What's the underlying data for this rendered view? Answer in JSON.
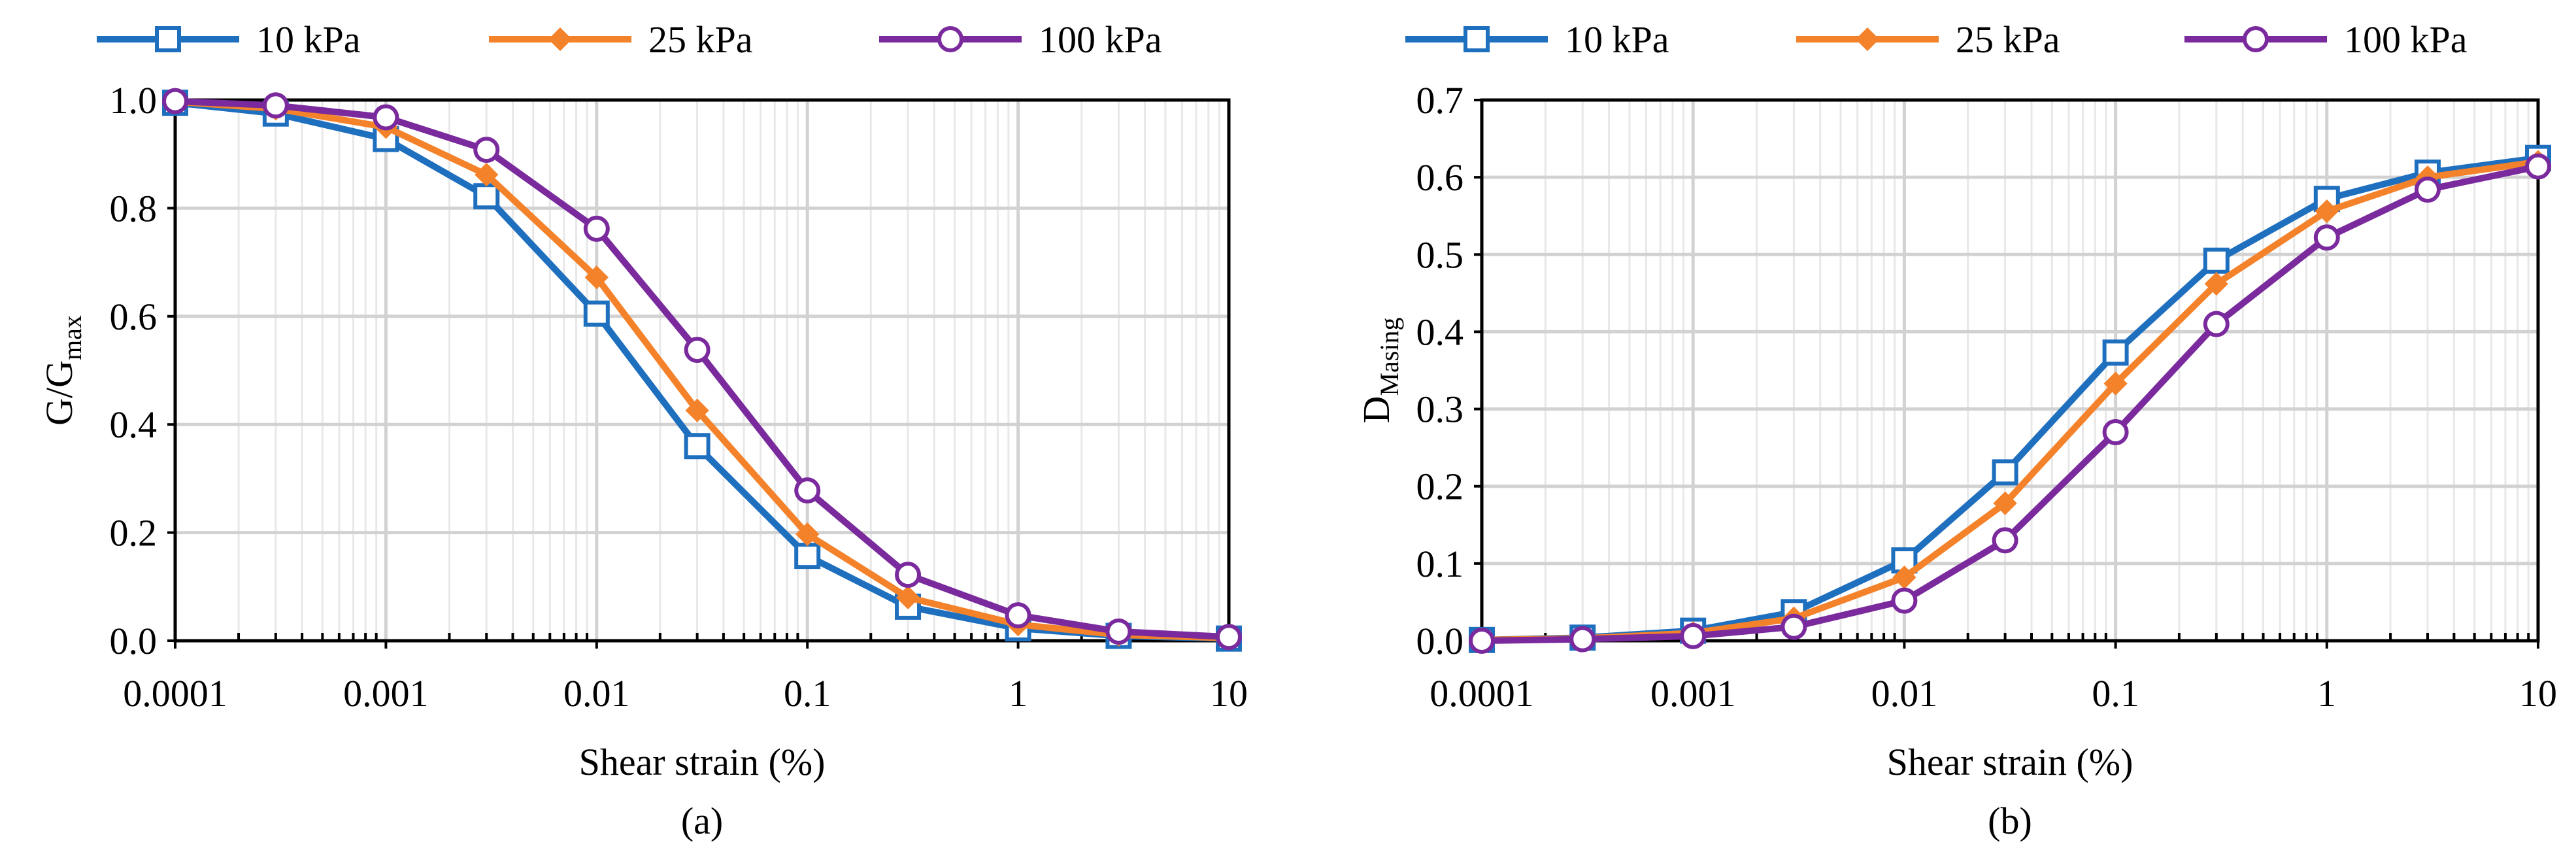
{
  "chart_data": [
    {
      "type": "line",
      "panel_label": "(a)",
      "title": "",
      "xlabel": "Shear strain (%)",
      "ylabel_main": "G/G",
      "ylabel_sub": "max",
      "xscale": "log",
      "xlim": [
        0.0001,
        10
      ],
      "ylim": [
        0,
        1
      ],
      "x_ticks": [
        0.0001,
        0.001,
        0.01,
        0.1,
        1,
        10
      ],
      "x_tick_labels": [
        "0.0001",
        "0.001",
        "0.01",
        "0.1",
        "1",
        "10"
      ],
      "y_ticks": [
        0,
        0.2,
        0.4,
        0.6,
        0.8,
        1.0
      ],
      "y_tick_labels": [
        "0.0",
        "0.2",
        "0.4",
        "0.6",
        "0.8",
        "1.0"
      ],
      "grid": true,
      "legend_position": "top",
      "x": [
        0.0001,
        0.0003,
        0.001,
        0.003,
        0.01,
        0.03,
        0.1,
        0.3,
        1,
        3,
        10
      ],
      "series": [
        {
          "name": "10 kPa",
          "color": "#1f6fbf",
          "marker": "square",
          "values": [
            0.995,
            0.975,
            0.928,
            0.822,
            0.605,
            0.36,
            0.157,
            0.063,
            0.023,
            0.009,
            0.004
          ]
        },
        {
          "name": "25 kPa",
          "color": "#f4822a",
          "marker": "diamond",
          "values": [
            0.997,
            0.984,
            0.95,
            0.862,
            0.672,
            0.426,
            0.197,
            0.08,
            0.03,
            0.011,
            0.005
          ]
        },
        {
          "name": "100 kPa",
          "color": "#7a2a9c",
          "marker": "circle",
          "values": [
            0.998,
            0.99,
            0.968,
            0.908,
            0.762,
            0.538,
            0.278,
            0.122,
            0.047,
            0.017,
            0.007
          ]
        }
      ]
    },
    {
      "type": "line",
      "panel_label": "(b)",
      "title": "",
      "xlabel": "Shear strain (%)",
      "ylabel_main": "D",
      "ylabel_sub": "Masing",
      "xscale": "log",
      "xlim": [
        0.0001,
        10
      ],
      "ylim": [
        0,
        0.7
      ],
      "x_ticks": [
        0.0001,
        0.001,
        0.01,
        0.1,
        1,
        10
      ],
      "x_tick_labels": [
        "0.0001",
        "0.001",
        "0.01",
        "0.1",
        "1",
        "10"
      ],
      "y_ticks": [
        0,
        0.1,
        0.2,
        0.3,
        0.4,
        0.5,
        0.6,
        0.7
      ],
      "y_tick_labels": [
        "0.0",
        "0.1",
        "0.2",
        "0.3",
        "0.4",
        "0.5",
        "0.6",
        "0.7"
      ],
      "grid": true,
      "legend_position": "top",
      "x": [
        0.0001,
        0.0003,
        0.001,
        0.003,
        0.01,
        0.03,
        0.1,
        0.3,
        1,
        3,
        10
      ],
      "series": [
        {
          "name": "10 kPa",
          "color": "#1f6fbf",
          "marker": "square",
          "values": [
            0.001,
            0.004,
            0.013,
            0.037,
            0.104,
            0.218,
            0.373,
            0.492,
            0.572,
            0.606,
            0.625
          ]
        },
        {
          "name": "25 kPa",
          "color": "#f4822a",
          "marker": "diamond",
          "values": [
            0.001,
            0.003,
            0.01,
            0.029,
            0.082,
            0.178,
            0.333,
            0.462,
            0.556,
            0.6,
            0.62
          ]
        },
        {
          "name": "100 kPa",
          "color": "#7a2a9c",
          "marker": "circle",
          "values": [
            0.0,
            0.002,
            0.006,
            0.018,
            0.052,
            0.13,
            0.27,
            0.41,
            0.522,
            0.584,
            0.614
          ]
        }
      ]
    }
  ]
}
